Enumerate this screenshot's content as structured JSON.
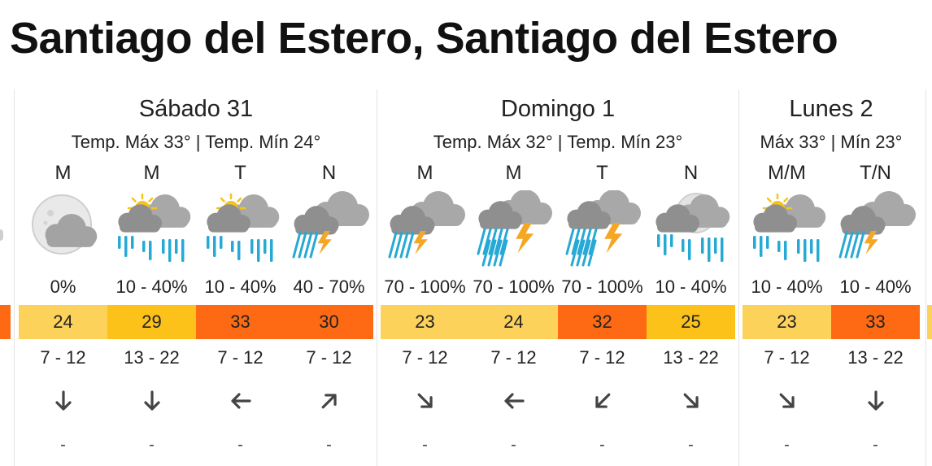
{
  "location": {
    "title": "Santiago del Estero, Santiago del Estero"
  },
  "colors": {
    "temp_23": "#fdd25a",
    "temp_24": "#fdd25a",
    "temp_25": "#fcc21a",
    "temp_29": "#fcc21a",
    "temp_30": "#fe6a13",
    "temp_32": "#fe6a13",
    "temp_33": "#fe6a13",
    "rain": "#27a9d6",
    "bolt": "#f5a623",
    "cloud": "#9a9a9a",
    "sun": "#f5c518"
  },
  "days": [
    {
      "name": "Sábado 31",
      "temps": "Temp. Máx 33° | Temp. Mín 24°",
      "periods": [
        {
          "label": "M",
          "icon": "moon-cloud-icon",
          "prob": "0%",
          "temp": "24",
          "color": "#fdd25a",
          "wind": "7 - 12",
          "dir": "arrow-down-icon",
          "rot": 180,
          "extra": "-"
        },
        {
          "label": "M",
          "icon": "sun-cloud-rain-icon",
          "prob": "10 - 40%",
          "temp": "29",
          "color": "#fcc21a",
          "wind": "13 - 22",
          "dir": "arrow-down-icon",
          "rot": 180,
          "extra": "-"
        },
        {
          "label": "T",
          "icon": "sun-cloud-rain-icon",
          "prob": "10 - 40%",
          "temp": "33",
          "color": "#fe6a13",
          "wind": "7 - 12",
          "dir": "arrow-left-icon",
          "rot": 270,
          "extra": "-"
        },
        {
          "label": "N",
          "icon": "cloud-storm-icon",
          "prob": "40 - 70%",
          "temp": "30",
          "color": "#fe6a13",
          "wind": "7 - 12",
          "dir": "arrow-up-right-icon",
          "rot": 45,
          "extra": "-"
        }
      ]
    },
    {
      "name": "Domingo 1",
      "temps": "Temp. Máx 32° | Temp. Mín 23°",
      "periods": [
        {
          "label": "M",
          "icon": "cloud-storm-icon",
          "prob": "70 - 100%",
          "temp": "23",
          "color": "#fdd25a",
          "wind": "7 - 12",
          "dir": "arrow-down-right-icon",
          "rot": 135,
          "extra": "-"
        },
        {
          "label": "M",
          "icon": "heavy-storm-icon",
          "prob": "70 - 100%",
          "temp": "24",
          "color": "#fdd25a",
          "wind": "7 - 12",
          "dir": "arrow-left-icon",
          "rot": 270,
          "extra": "-"
        },
        {
          "label": "T",
          "icon": "heavy-storm-icon",
          "prob": "70 - 100%",
          "temp": "32",
          "color": "#fe6a13",
          "wind": "7 - 12",
          "dir": "arrow-down-left-icon",
          "rot": 225,
          "extra": "-"
        },
        {
          "label": "N",
          "icon": "moon-cloud-rain-icon",
          "prob": "10 - 40%",
          "temp": "25",
          "color": "#fcc21a",
          "wind": "13 - 22",
          "dir": "arrow-down-right-icon",
          "rot": 135,
          "extra": "-"
        }
      ]
    },
    {
      "name": "Lunes 2",
      "temps": "Máx 33° | Mín 23°",
      "periods": [
        {
          "label": "M/M",
          "icon": "sun-cloud-rain-icon",
          "prob": "10 - 40%",
          "temp": "23",
          "color": "#fdd25a",
          "wind": "7 - 12",
          "dir": "arrow-down-right-icon",
          "rot": 135,
          "extra": "-"
        },
        {
          "label": "T/N",
          "icon": "cloud-storm-icon",
          "prob": "10 - 40%",
          "temp": "33",
          "color": "#fe6a13",
          "wind": "13 - 22",
          "dir": "arrow-down-icon",
          "rot": 180,
          "extra": "-"
        }
      ]
    }
  ]
}
